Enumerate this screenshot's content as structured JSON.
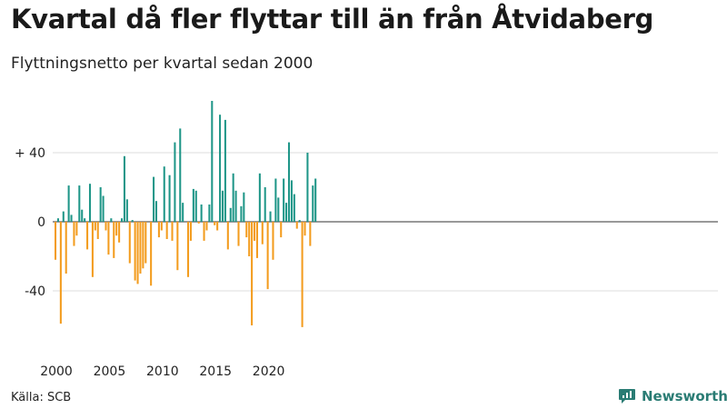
{
  "chart_data": {
    "type": "bar",
    "title": "Kvartal då fler flyttar till än från Åtvidaberg",
    "subtitle": "Flyttningsnetto per kvartal sedan 2000",
    "source": "Källa: SCB",
    "brand": "Newsworthy",
    "colors": {
      "positive": "#1f9688",
      "negative": "#f39c1e",
      "grid": "#dddddd",
      "baseline": "#333333"
    },
    "ylim": [
      -65,
      70
    ],
    "y_ticks": [
      {
        "value": 40,
        "label": "+ 40"
      },
      {
        "value": 0,
        "label": "0"
      },
      {
        "value": -40,
        "label": "-40"
      }
    ],
    "x_ticks": [
      "2000",
      "2005",
      "2010",
      "2015",
      "2020"
    ],
    "x_start_year": 2000,
    "values": [
      -22,
      2,
      -59,
      6,
      -30,
      21,
      4,
      -14,
      -8,
      21,
      7,
      2,
      -16,
      22,
      -32,
      -5,
      -10,
      20,
      15,
      -5,
      -19,
      2,
      -21,
      -8,
      -12,
      2,
      38,
      13,
      -24,
      1,
      -34,
      -36,
      -30,
      -27,
      -24,
      0,
      -37,
      26,
      12,
      -9,
      -5,
      32,
      -10,
      27,
      -11,
      46,
      -28,
      54,
      11,
      0,
      -32,
      -11,
      19,
      18,
      -1,
      10,
      -11,
      -5,
      10,
      70,
      -2,
      -5,
      62,
      18,
      59,
      -16,
      8,
      28,
      18,
      -14,
      9,
      17,
      -9,
      -20,
      -60,
      -11,
      -21,
      28,
      -13,
      20,
      -39,
      6,
      -22,
      25,
      14,
      -9,
      25,
      11,
      46,
      24,
      16,
      -4,
      1,
      -61,
      -8,
      40,
      -14,
      21,
      25
    ]
  }
}
